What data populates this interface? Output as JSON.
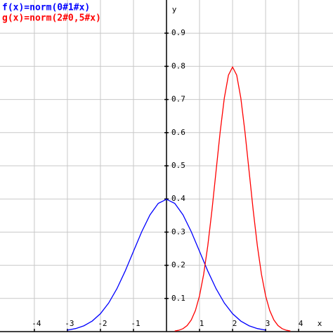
{
  "chart_data": {
    "type": "line",
    "x_label": "x",
    "y_label": "y",
    "xlim": [
      -5.04,
      5.04
    ],
    "ylim": [
      0,
      1.0
    ],
    "xticks": [
      -4,
      -3,
      -2,
      -1,
      1,
      2,
      3,
      4
    ],
    "yticks": [
      0.1,
      0.2,
      0.3,
      0.4,
      0.5,
      0.6,
      0.7,
      0.8,
      0.9
    ],
    "grid": true,
    "series": [
      {
        "name": "f(x)=norm(0#1#x)",
        "color": "#0000ff",
        "x": [
          -3,
          -2.75,
          -2.5,
          -2.25,
          -2,
          -1.75,
          -1.5,
          -1.25,
          -1,
          -0.75,
          -0.5,
          -0.25,
          0,
          0.25,
          0.5,
          0.75,
          1,
          1.25,
          1.5,
          1.75,
          2,
          2.25,
          2.5,
          2.75,
          3
        ],
        "values": [
          0.0044,
          0.0091,
          0.0175,
          0.0317,
          0.054,
          0.0863,
          0.1295,
          0.1826,
          0.242,
          0.3011,
          0.3521,
          0.3867,
          0.3989,
          0.3867,
          0.3521,
          0.3011,
          0.242,
          0.1826,
          0.1295,
          0.0863,
          0.054,
          0.0317,
          0.0175,
          0.0091,
          0.0044
        ]
      },
      {
        "name": "g(x)=norm(2#0,5#x)",
        "color": "#ff0000",
        "x": [
          0.25,
          0.375,
          0.5,
          0.625,
          0.75,
          0.875,
          1,
          1.125,
          1.25,
          1.375,
          1.5,
          1.625,
          1.75,
          1.875,
          2,
          2.125,
          2.25,
          2.375,
          2.5,
          2.625,
          2.75,
          2.875,
          3,
          3.125,
          3.25,
          3.375,
          3.5,
          3.625,
          3.75
        ],
        "values": [
          0.0017,
          0.0041,
          0.0089,
          0.0182,
          0.0351,
          0.0635,
          0.108,
          0.1726,
          0.259,
          0.3653,
          0.4839,
          0.6023,
          0.7042,
          0.7734,
          0.7979,
          0.7734,
          0.7042,
          0.6023,
          0.4839,
          0.3653,
          0.259,
          0.1726,
          0.108,
          0.0635,
          0.0351,
          0.0182,
          0.0089,
          0.0041,
          0.0017
        ]
      }
    ]
  }
}
